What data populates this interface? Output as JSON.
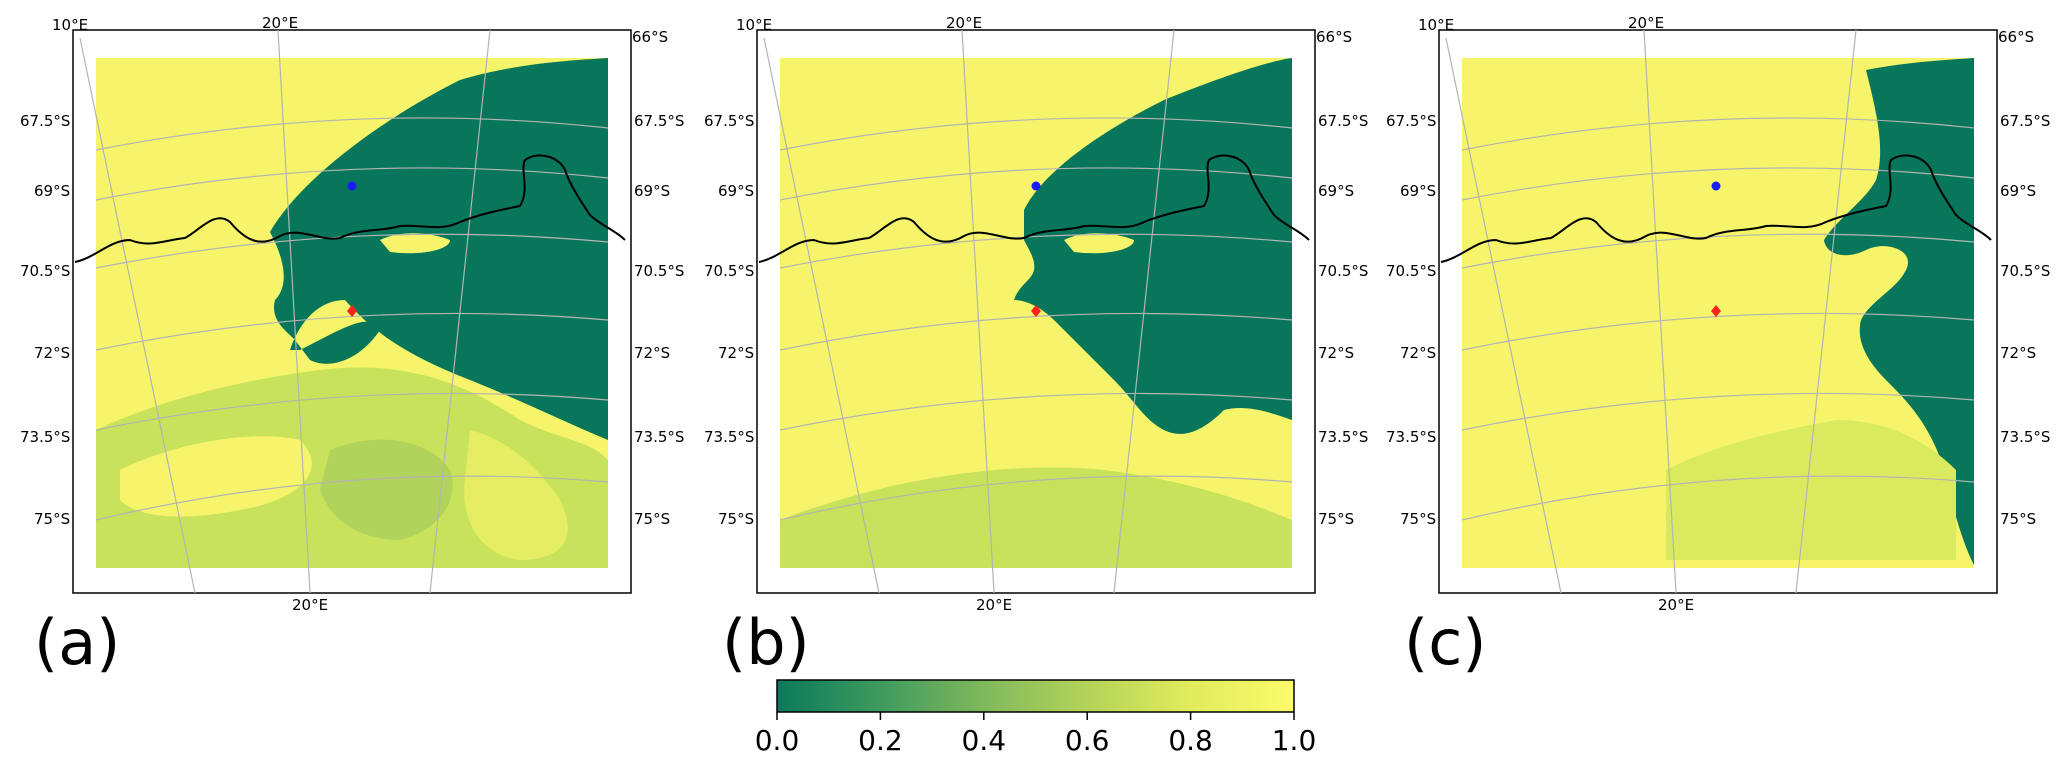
{
  "panels": [
    {
      "label": "(a)",
      "fill_hint": "dark-east"
    },
    {
      "label": "(b)",
      "fill_hint": "dark-center"
    },
    {
      "label": "(c)",
      "fill_hint": "dark-right"
    }
  ],
  "map_labels": {
    "top_lon": [
      "10°E",
      "20°E"
    ],
    "bottom_lon": "20°E",
    "left_lat": [
      "67.5°S",
      "69°S",
      "70.5°S",
      "72°S",
      "73.5°S",
      "75°S"
    ],
    "right_lat": [
      "66°S",
      "67.5°S",
      "69°S",
      "70.5°S",
      "72°S",
      "73.5°S",
      "75°S"
    ]
  },
  "markers": [
    {
      "name": "blue-dot",
      "color": "#1a1aff"
    },
    {
      "name": "red-diamond",
      "color": "#ff2020"
    }
  ],
  "colorbar": {
    "ticks": [
      "0.0",
      "0.2",
      "0.4",
      "0.6",
      "0.8",
      "1.0"
    ],
    "color_stops": [
      "#0a7a5c",
      "#3f9a5e",
      "#7fb95c",
      "#b4d35a",
      "#e0ec5c",
      "#fbfb6c"
    ]
  },
  "colors": {
    "yellow": "#f5f46a",
    "dark_green": "#07765a",
    "mid_green": "#9ccc60",
    "grid": "#b4b4b4",
    "frame": "#000000"
  }
}
